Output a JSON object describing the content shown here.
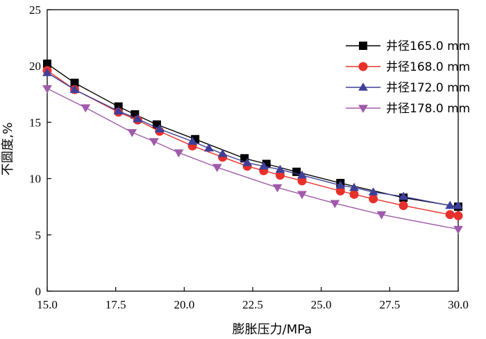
{
  "chart_data": {
    "type": "line",
    "xlabel": "膨胀压力/MPa",
    "ylabel": "不圆度,%",
    "xlim": [
      15.0,
      30.0
    ],
    "ylim": [
      0,
      25
    ],
    "xticks": [
      "15.0",
      "17.5",
      "20.0",
      "22.5",
      "25.0",
      "27.5",
      "30.0"
    ],
    "yticks": [
      "0",
      "5",
      "10",
      "15",
      "20",
      "25"
    ],
    "grid": false,
    "legend_position": "top-right",
    "series": [
      {
        "name": "井径165.0 mm",
        "color": "#000000",
        "marker": "square",
        "x": [
          15.0,
          16.0,
          17.6,
          18.2,
          19.0,
          20.4,
          22.2,
          23.0,
          24.1,
          25.7,
          28.0,
          30.0
        ],
        "y": [
          20.2,
          18.5,
          16.4,
          15.7,
          14.8,
          13.5,
          11.8,
          11.3,
          10.6,
          9.6,
          8.3,
          7.5
        ]
      },
      {
        "name": "井径168.0 mm",
        "color": "#e8302a",
        "marker": "circle",
        "x": [
          15.0,
          16.0,
          17.6,
          18.3,
          19.1,
          20.3,
          21.4,
          22.3,
          22.9,
          23.5,
          24.3,
          25.7,
          26.2,
          26.9,
          28.0,
          29.7,
          30.0
        ],
        "y": [
          19.6,
          17.9,
          15.9,
          15.2,
          14.2,
          12.9,
          11.9,
          11.1,
          10.7,
          10.3,
          9.8,
          8.9,
          8.6,
          8.2,
          7.6,
          6.8,
          6.7
        ]
      },
      {
        "name": "井径172.0 mm",
        "color": "#3f3f9a",
        "marker": "triangle-up",
        "x": [
          15.0,
          16.0,
          17.6,
          18.3,
          19.1,
          20.3,
          20.9,
          21.4,
          22.3,
          22.9,
          23.5,
          24.3,
          25.7,
          26.2,
          26.9,
          28.0,
          29.7,
          30.0
        ],
        "y": [
          19.4,
          17.9,
          16.0,
          15.3,
          14.4,
          13.3,
          12.7,
          12.2,
          11.4,
          11.1,
          10.8,
          10.3,
          9.4,
          9.2,
          8.8,
          8.4,
          7.6,
          7.6
        ]
      },
      {
        "name": "井径178.0 mm",
        "color": "#a05aab",
        "marker": "triangle-down",
        "x": [
          15.0,
          16.4,
          18.1,
          18.9,
          19.8,
          21.2,
          23.4,
          24.3,
          25.5,
          27.2,
          30.0
        ],
        "y": [
          18.0,
          16.3,
          14.1,
          13.3,
          12.3,
          11.0,
          9.2,
          8.6,
          7.8,
          6.8,
          5.5
        ]
      }
    ]
  }
}
